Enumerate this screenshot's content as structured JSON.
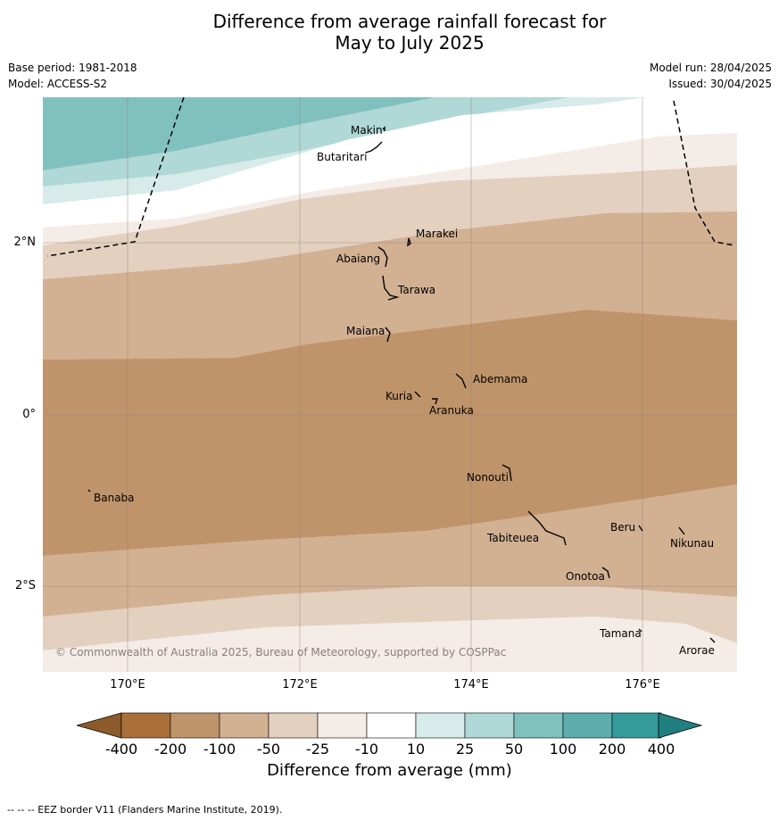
{
  "title": {
    "line1": "Difference from average rainfall forecast for",
    "line2": "May to July 2025"
  },
  "meta": {
    "base_period": "Base period: 1981-2018",
    "model": "Model: ACCESS-S2",
    "model_run": "Model run: 28/04/2025",
    "issued": "Issued: 30/04/2025"
  },
  "map": {
    "lat_labels": [
      "2°N",
      "0°",
      "2°S"
    ],
    "lon_labels": [
      "170°E",
      "172°E",
      "174°E",
      "176°E"
    ],
    "places": [
      "Makin",
      "Butaritari",
      "Marakei",
      "Abaiang",
      "Tarawa",
      "Maiana",
      "Abemama",
      "Kuria",
      "Aranuka",
      "Nonouti",
      "Banaba",
      "Beru",
      "Nikunau",
      "Tabiteuea",
      "Onotoa",
      "Tamana",
      "Arorae"
    ],
    "copyright": "© Commonwealth of Australia 2025, Bureau of Meteorology, supported by COSPPac",
    "eez_border": "dashed"
  },
  "colorbar": {
    "ticks": [
      "-400",
      "-200",
      "-100",
      "-50",
      "-25",
      "-10",
      "10",
      "25",
      "50",
      "100",
      "200",
      "400"
    ],
    "colors": [
      "#8c5a2b",
      "#a9703a",
      "#c0946a",
      "#d2b092",
      "#e3d0bf",
      "#f4ece6",
      "#ffffff",
      "#d6ebea",
      "#afd8d7",
      "#80c1bf",
      "#5cadab",
      "#36999a",
      "#227f80"
    ],
    "title": "Difference from average (mm)"
  },
  "footer": "--  --  -- EEZ border V11 (Flanders Marine Institute, 2019)."
}
